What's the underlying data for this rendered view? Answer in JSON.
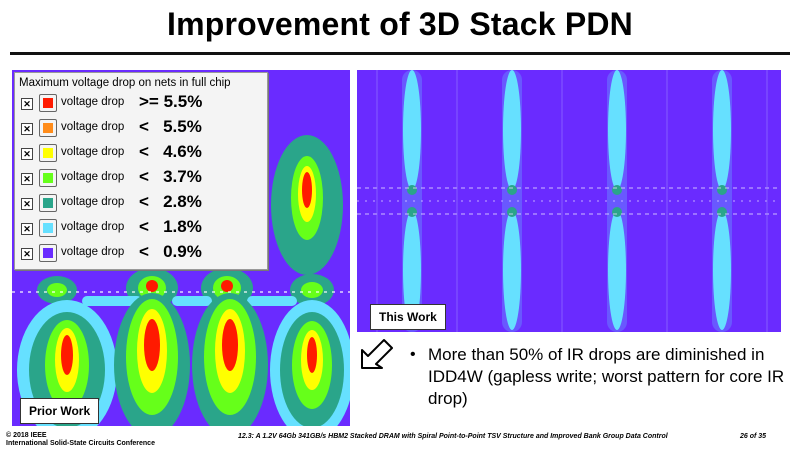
{
  "slide": {
    "title": "Improvement of 3D Stack PDN"
  },
  "legend": {
    "title": "Maximum voltage drop on nets in full chip",
    "rows": [
      {
        "label": "voltage drop",
        "threshold": ">= 5.5%",
        "color": "#ff1a00",
        "checked": "✕"
      },
      {
        "label": "voltage drop",
        "threshold": "<   5.5%",
        "color": "#ff8c1a",
        "checked": "✕"
      },
      {
        "label": "voltage drop",
        "threshold": "<   4.6%",
        "color": "#ffff00",
        "checked": "✕"
      },
      {
        "label": "voltage drop",
        "threshold": "<   3.7%",
        "color": "#66ff1a",
        "checked": "✕"
      },
      {
        "label": "voltage drop",
        "threshold": "<   2.8%",
        "color": "#2aa58a",
        "checked": "✕"
      },
      {
        "label": "voltage drop",
        "threshold": "<   1.8%",
        "color": "#66e0ff",
        "checked": "✕"
      },
      {
        "label": "voltage drop",
        "threshold": "<   0.9%",
        "color": "#6a2bff",
        "checked": "✕"
      }
    ]
  },
  "maps": {
    "prior_label": "Prior Work",
    "this_label": "This Work"
  },
  "bullet": {
    "symbol": "•",
    "text": "More than 50% of IR drops are diminished in IDD4W (gapless write; worst pattern for core IR drop)"
  },
  "footer": {
    "copyright": "© 2018 IEEE",
    "conference": "International Solid-State Circuits Conference",
    "paper": "12.3: A 1.2V 64Gb 341GB/s HBM2 Stacked DRAM with Spiral Point-to-Point TSV Structure and Improved Bank Group Data Control",
    "page": "26 of 35"
  },
  "colors": {
    "base": "#6a2bff",
    "cyan": "#66e0ff",
    "teal": "#2aa58a",
    "green": "#66ff1a",
    "yellow": "#ffff00",
    "orange": "#ff8c1a",
    "red": "#ff1a00"
  }
}
